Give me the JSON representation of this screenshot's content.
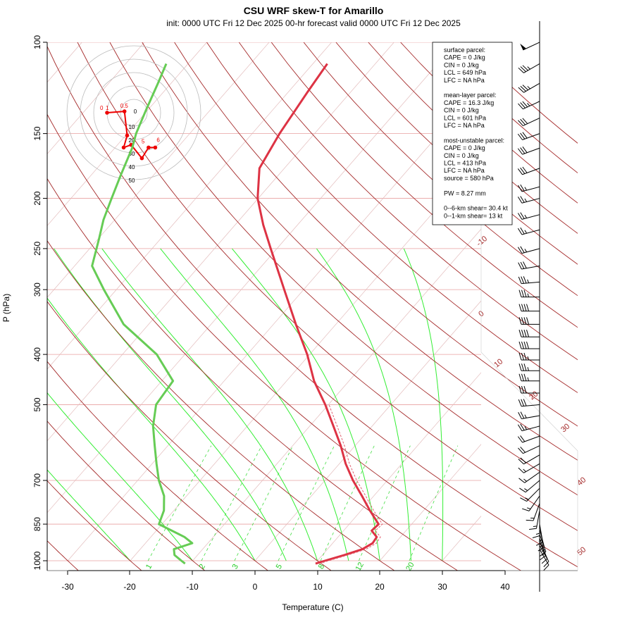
{
  "title": "CSU WRF skew-T for Amarillo",
  "subtitle": "init: 0000 UTC Fri 12 Dec 2025     00-hr forecast valid 0000 UTC Fri 12 Dec 2025",
  "chart_data": {
    "type": "line",
    "xlabel": "Temperature (C)",
    "ylabel": "P (hPa)",
    "pressure_ticks": [
      100,
      150,
      200,
      250,
      300,
      400,
      500,
      700,
      850,
      1000
    ],
    "temperature_ticks": [
      -30,
      -20,
      -10,
      0,
      10,
      20,
      30,
      40
    ],
    "isotherm_labels": [
      -10,
      0,
      10,
      20,
      30,
      40,
      50
    ],
    "mixing_ratio_labels": [
      1,
      2,
      3,
      5,
      8,
      12,
      20
    ],
    "series": [
      {
        "name": "temperature",
        "color": "#dd3344",
        "points": [
          [
            1013,
            10.1
          ],
          [
            1000,
            11.2
          ],
          [
            975,
            13.5
          ],
          [
            950,
            15.6
          ],
          [
            925,
            16.4
          ],
          [
            900,
            16.2
          ],
          [
            875,
            14.5
          ],
          [
            850,
            14.7
          ],
          [
            800,
            11.4
          ],
          [
            750,
            8.1
          ],
          [
            700,
            4.5
          ],
          [
            650,
            1.0
          ],
          [
            600,
            -2.3
          ],
          [
            550,
            -6.2
          ],
          [
            500,
            -10.5
          ],
          [
            450,
            -15.6
          ],
          [
            400,
            -20.4
          ],
          [
            350,
            -26.4
          ],
          [
            300,
            -33.1
          ],
          [
            250,
            -41.0
          ],
          [
            225,
            -45.5
          ],
          [
            200,
            -50.1
          ],
          [
            175,
            -54.0
          ],
          [
            150,
            -55.6
          ],
          [
            125,
            -56.9
          ],
          [
            110,
            -57.7
          ]
        ]
      },
      {
        "name": "dewpoint",
        "color": "#66cc55",
        "points": [
          [
            1013,
            -10.8
          ],
          [
            1000,
            -11.8
          ],
          [
            975,
            -13.7
          ],
          [
            950,
            -14.6
          ],
          [
            925,
            -12.5
          ],
          [
            900,
            -14.6
          ],
          [
            850,
            -20.5
          ],
          [
            800,
            -21.6
          ],
          [
            750,
            -23.6
          ],
          [
            700,
            -26.6
          ],
          [
            650,
            -29.3
          ],
          [
            600,
            -32.1
          ],
          [
            550,
            -35.1
          ],
          [
            500,
            -37.6
          ],
          [
            450,
            -38.2
          ],
          [
            400,
            -44.5
          ],
          [
            350,
            -54.0
          ],
          [
            300,
            -62.0
          ],
          [
            270,
            -67.2
          ],
          [
            240,
            -69.8
          ],
          [
            220,
            -71.8
          ],
          [
            200,
            -73.5
          ],
          [
            180,
            -75.3
          ],
          [
            160,
            -77.2
          ],
          [
            150,
            -78.6
          ],
          [
            135,
            -80.3
          ],
          [
            120,
            -82.1
          ],
          [
            110,
            -83.5
          ]
        ]
      }
    ],
    "hodograph": {
      "rings": [
        0,
        10,
        20,
        30,
        40,
        50
      ],
      "labels": [
        "0",
        "1",
        "0.5",
        "3",
        "5",
        "6"
      ],
      "points": [
        [
          -10.0,
          0.0
        ],
        [
          -3.5,
          0.5
        ],
        [
          -2.5,
          -8.5
        ],
        [
          -3.8,
          -13.0
        ],
        [
          -1.0,
          -12.0
        ],
        [
          3.0,
          -17.0
        ],
        [
          5.5,
          -13.0
        ],
        [
          8.0,
          -13.0
        ]
      ]
    },
    "wind_barbs_kt": [
      {
        "p": 100,
        "dir": 245,
        "spd": 50
      },
      {
        "p": 110,
        "dir": 240,
        "spd": 35
      },
      {
        "p": 120,
        "dir": 240,
        "spd": 35
      },
      {
        "p": 130,
        "dir": 245,
        "spd": 35
      },
      {
        "p": 140,
        "dir": 245,
        "spd": 30
      },
      {
        "p": 150,
        "dir": 250,
        "spd": 30
      },
      {
        "p": 160,
        "dir": 250,
        "spd": 30
      },
      {
        "p": 175,
        "dir": 250,
        "spd": 30
      },
      {
        "p": 190,
        "dir": 255,
        "spd": 25
      },
      {
        "p": 200,
        "dir": 255,
        "spd": 25
      },
      {
        "p": 215,
        "dir": 255,
        "spd": 25
      },
      {
        "p": 230,
        "dir": 255,
        "spd": 25
      },
      {
        "p": 250,
        "dir": 255,
        "spd": 25
      },
      {
        "p": 270,
        "dir": 260,
        "spd": 30
      },
      {
        "p": 290,
        "dir": 265,
        "spd": 35
      },
      {
        "p": 310,
        "dir": 270,
        "spd": 35
      },
      {
        "p": 330,
        "dir": 270,
        "spd": 40
      },
      {
        "p": 350,
        "dir": 270,
        "spd": 40
      },
      {
        "p": 370,
        "dir": 270,
        "spd": 40
      },
      {
        "p": 390,
        "dir": 270,
        "spd": 40
      },
      {
        "p": 410,
        "dir": 270,
        "spd": 35
      },
      {
        "p": 430,
        "dir": 270,
        "spd": 35
      },
      {
        "p": 450,
        "dir": 270,
        "spd": 35
      },
      {
        "p": 475,
        "dir": 270,
        "spd": 30
      },
      {
        "p": 500,
        "dir": 265,
        "spd": 30
      },
      {
        "p": 525,
        "dir": 260,
        "spd": 25
      },
      {
        "p": 550,
        "dir": 255,
        "spd": 25
      },
      {
        "p": 575,
        "dir": 250,
        "spd": 20
      },
      {
        "p": 600,
        "dir": 245,
        "spd": 20
      },
      {
        "p": 625,
        "dir": 240,
        "spd": 20
      },
      {
        "p": 650,
        "dir": 240,
        "spd": 15
      },
      {
        "p": 675,
        "dir": 235,
        "spd": 15
      },
      {
        "p": 700,
        "dir": 230,
        "spd": 15
      },
      {
        "p": 725,
        "dir": 225,
        "spd": 15
      },
      {
        "p": 750,
        "dir": 215,
        "spd": 15
      },
      {
        "p": 775,
        "dir": 200,
        "spd": 15
      },
      {
        "p": 800,
        "dir": 190,
        "spd": 15
      },
      {
        "p": 825,
        "dir": 180,
        "spd": 15
      },
      {
        "p": 850,
        "dir": 170,
        "spd": 15
      },
      {
        "p": 870,
        "dir": 165,
        "spd": 15
      },
      {
        "p": 890,
        "dir": 160,
        "spd": 15
      },
      {
        "p": 905,
        "dir": 160,
        "spd": 15
      },
      {
        "p": 920,
        "dir": 155,
        "spd": 10
      },
      {
        "p": 935,
        "dir": 150,
        "spd": 10
      },
      {
        "p": 950,
        "dir": 150,
        "spd": 10
      }
    ]
  },
  "stats": {
    "lines": [
      "surface parcel:",
      "CAPE = 0 J/kg",
      "CIN = 0 J/kg",
      "LCL = 649 hPa",
      "LFC = NA hPa",
      "",
      "mean-layer parcel:",
      "CAPE = 16.3 J/kg",
      "CIN = 0 J/kg",
      "LCL = 601 hPa",
      "LFC = NA hPa",
      "",
      "most-unstable parcel:",
      "CAPE = 0 J/kg",
      "CIN = 0 J/kg",
      "LCL = 413 hPa",
      "LFC = NA hPa",
      "source = 580 hPa",
      "",
      "PW =  8.27 mm",
      "",
      "0--6-km shear= 30.4 kt",
      "0--1-km shear= 13 kt"
    ]
  }
}
